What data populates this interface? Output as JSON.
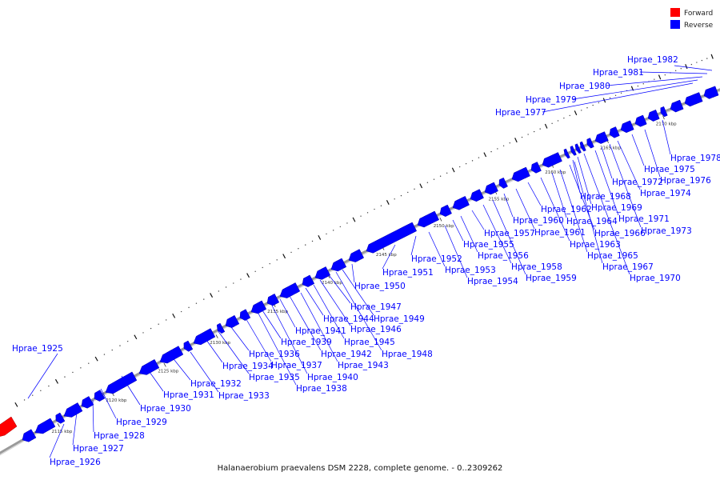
{
  "caption": "Halanaerobium praevalens DSM 2228, complete genome. - 0..2309262",
  "legend": [
    {
      "label": "Forward",
      "color": "#ff0000"
    },
    {
      "label": "Reverse",
      "color": "#0000ff"
    }
  ],
  "colors": {
    "reverse": "#0000ff",
    "forward": "#ff0000",
    "backbone": "#888888"
  },
  "ticks": [
    "2115 kbp",
    "2120 kbp",
    "2125 kbp",
    "2130 kbp",
    "2135 kbp",
    "2140 kbp",
    "2145 kbp",
    "2150 kbp",
    "2155 kbp",
    "2160 kbp",
    "2165 kbp",
    "2170 kbp"
  ],
  "genes": [
    {
      "label": "Hprae_1925",
      "strand": "reverse"
    },
    {
      "label": "Hprae_1926",
      "strand": "reverse"
    },
    {
      "label": "Hprae_1927",
      "strand": "reverse"
    },
    {
      "label": "Hprae_1928",
      "strand": "reverse"
    },
    {
      "label": "Hprae_1929",
      "strand": "reverse"
    },
    {
      "label": "Hprae_1930",
      "strand": "reverse"
    },
    {
      "label": "Hprae_1931",
      "strand": "reverse"
    },
    {
      "label": "Hprae_1932",
      "strand": "reverse"
    },
    {
      "label": "Hprae_1933",
      "strand": "reverse"
    },
    {
      "label": "Hprae_1934",
      "strand": "reverse"
    },
    {
      "label": "Hprae_1935",
      "strand": "reverse"
    },
    {
      "label": "Hprae_1936",
      "strand": "reverse"
    },
    {
      "label": "Hprae_1937",
      "strand": "reverse"
    },
    {
      "label": "Hprae_1938",
      "strand": "reverse"
    },
    {
      "label": "Hprae_1939",
      "strand": "reverse"
    },
    {
      "label": "Hprae_1940",
      "strand": "reverse"
    },
    {
      "label": "Hprae_1941",
      "strand": "reverse"
    },
    {
      "label": "Hprae_1942",
      "strand": "reverse"
    },
    {
      "label": "Hprae_1943",
      "strand": "reverse"
    },
    {
      "label": "Hprae_1944",
      "strand": "reverse"
    },
    {
      "label": "Hprae_1945",
      "strand": "reverse"
    },
    {
      "label": "Hprae_1946",
      "strand": "reverse"
    },
    {
      "label": "Hprae_1947",
      "strand": "reverse"
    },
    {
      "label": "Hprae_1948",
      "strand": "reverse"
    },
    {
      "label": "Hprae_1949",
      "strand": "reverse"
    },
    {
      "label": "Hprae_1950",
      "strand": "reverse"
    },
    {
      "label": "Hprae_1951",
      "strand": "reverse"
    },
    {
      "label": "Hprae_1952",
      "strand": "reverse"
    },
    {
      "label": "Hprae_1953",
      "strand": "reverse"
    },
    {
      "label": "Hprae_1954",
      "strand": "reverse"
    },
    {
      "label": "Hprae_1955",
      "strand": "reverse"
    },
    {
      "label": "Hprae_1956",
      "strand": "reverse"
    },
    {
      "label": "Hprae_1957",
      "strand": "reverse"
    },
    {
      "label": "Hprae_1958",
      "strand": "reverse"
    },
    {
      "label": "Hprae_1959",
      "strand": "reverse"
    },
    {
      "label": "Hprae_1960",
      "strand": "reverse"
    },
    {
      "label": "Hprae_1961",
      "strand": "reverse"
    },
    {
      "label": "Hprae_1962",
      "strand": "reverse"
    },
    {
      "label": "Hprae_1963",
      "strand": "reverse"
    },
    {
      "label": "Hprae_1964",
      "strand": "reverse"
    },
    {
      "label": "Hprae_1965",
      "strand": "reverse"
    },
    {
      "label": "Hprae_1966",
      "strand": "reverse"
    },
    {
      "label": "Hprae_1967",
      "strand": "reverse"
    },
    {
      "label": "Hprae_1968",
      "strand": "reverse"
    },
    {
      "label": "Hprae_1969",
      "strand": "reverse"
    },
    {
      "label": "Hprae_1970",
      "strand": "reverse"
    },
    {
      "label": "Hprae_1971",
      "strand": "reverse"
    },
    {
      "label": "Hprae_1972",
      "strand": "reverse"
    },
    {
      "label": "Hprae_1973",
      "strand": "reverse"
    },
    {
      "label": "Hprae_1974",
      "strand": "reverse"
    },
    {
      "label": "Hprae_1975",
      "strand": "reverse"
    },
    {
      "label": "Hprae_1976",
      "strand": "reverse"
    },
    {
      "label": "Hprae_1977",
      "strand": "reverse"
    },
    {
      "label": "Hprae_1978",
      "strand": "reverse"
    },
    {
      "label": "Hprae_1979",
      "strand": "reverse"
    },
    {
      "label": "Hprae_1980",
      "strand": "reverse"
    },
    {
      "label": "Hprae_1981",
      "strand": "reverse"
    },
    {
      "label": "Hprae_1982",
      "strand": "reverse"
    }
  ]
}
